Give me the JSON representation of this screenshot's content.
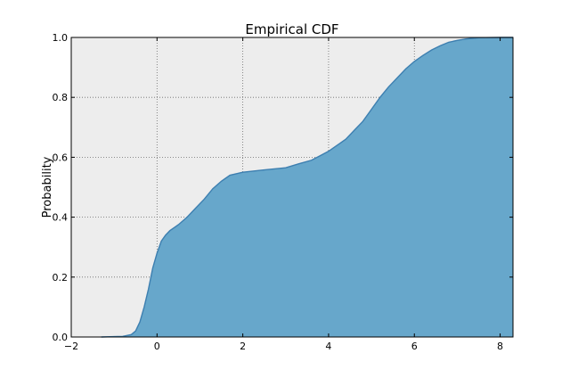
{
  "chart_data": {
    "type": "area",
    "title": "Empirical CDF",
    "xlabel": "",
    "ylabel": "Probability",
    "xlim": [
      -2,
      8.3
    ],
    "ylim": [
      0,
      1.0
    ],
    "xticks": [
      -2,
      0,
      2,
      4,
      6,
      8
    ],
    "xtick_labels": [
      "−2",
      "0",
      "2",
      "4",
      "6",
      "8"
    ],
    "yticks": [
      0.0,
      0.2,
      0.4,
      0.6,
      0.8,
      1.0
    ],
    "ytick_labels": [
      "0.0",
      "0.2",
      "0.4",
      "0.6",
      "0.8",
      "1.0"
    ],
    "grid": true,
    "legend": "none",
    "colors": {
      "fill": "#67a7cb",
      "line": "#3d7fb0",
      "plot_background": "#ededed",
      "grid": "#6b6b6b",
      "axes": "#000000"
    },
    "series": [
      {
        "x": [
          -1.3,
          -0.8,
          -0.6,
          -0.5,
          -0.4,
          -0.3,
          -0.2,
          -0.1,
          0.0,
          0.1,
          0.2,
          0.3,
          0.5,
          0.7,
          0.9,
          1.1,
          1.3,
          1.5,
          1.7,
          2.0,
          2.5,
          3.0,
          3.3,
          3.6,
          3.8,
          4.0,
          4.2,
          4.4,
          4.6,
          4.8,
          5.0,
          5.2,
          5.4,
          5.6,
          5.8,
          6.0,
          6.2,
          6.4,
          6.6,
          6.8,
          7.0,
          7.2,
          7.5,
          8.0,
          8.3
        ],
        "y": [
          0.0,
          0.002,
          0.008,
          0.02,
          0.05,
          0.1,
          0.16,
          0.23,
          0.28,
          0.32,
          0.34,
          0.355,
          0.375,
          0.4,
          0.43,
          0.46,
          0.495,
          0.52,
          0.54,
          0.55,
          0.558,
          0.565,
          0.578,
          0.59,
          0.605,
          0.62,
          0.64,
          0.66,
          0.69,
          0.72,
          0.76,
          0.8,
          0.835,
          0.865,
          0.895,
          0.92,
          0.94,
          0.958,
          0.972,
          0.984,
          0.99,
          0.995,
          0.999,
          1.0,
          1.0
        ]
      }
    ]
  }
}
